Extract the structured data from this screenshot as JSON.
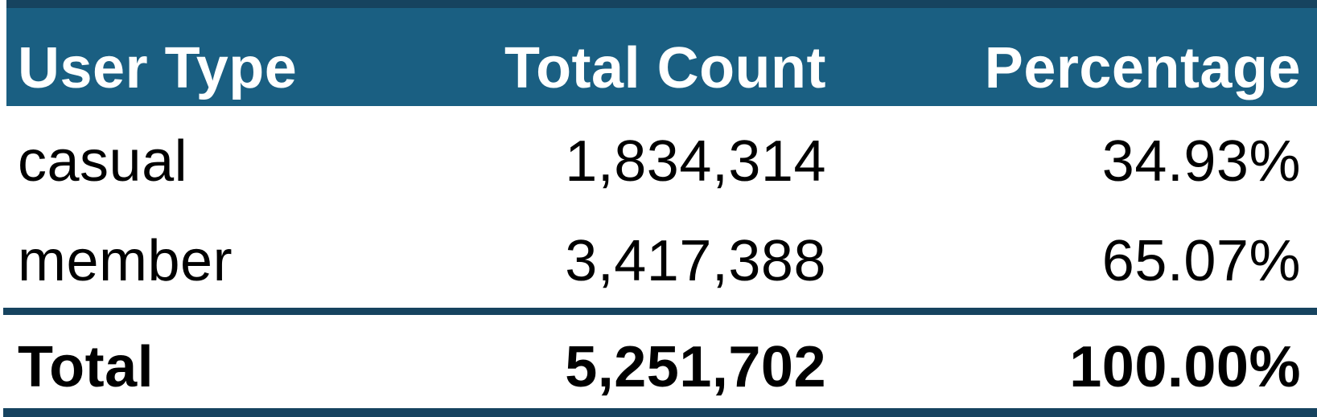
{
  "table": {
    "headers": {
      "user_type": "User Type",
      "total_count": "Total Count",
      "percentage": "Percentage"
    },
    "rows": [
      {
        "user_type": "casual",
        "total_count": "1,834,314",
        "percentage": "34.93%"
      },
      {
        "user_type": "member",
        "total_count": "3,417,388",
        "percentage": "65.07%"
      }
    ],
    "total": {
      "label": "Total",
      "total_count": "5,251,702",
      "percentage": "100.00%"
    }
  },
  "colors": {
    "header_background": "#1a5f82",
    "rule_color": "#16435f",
    "header_text": "#ffffff",
    "body_text": "#000000"
  }
}
